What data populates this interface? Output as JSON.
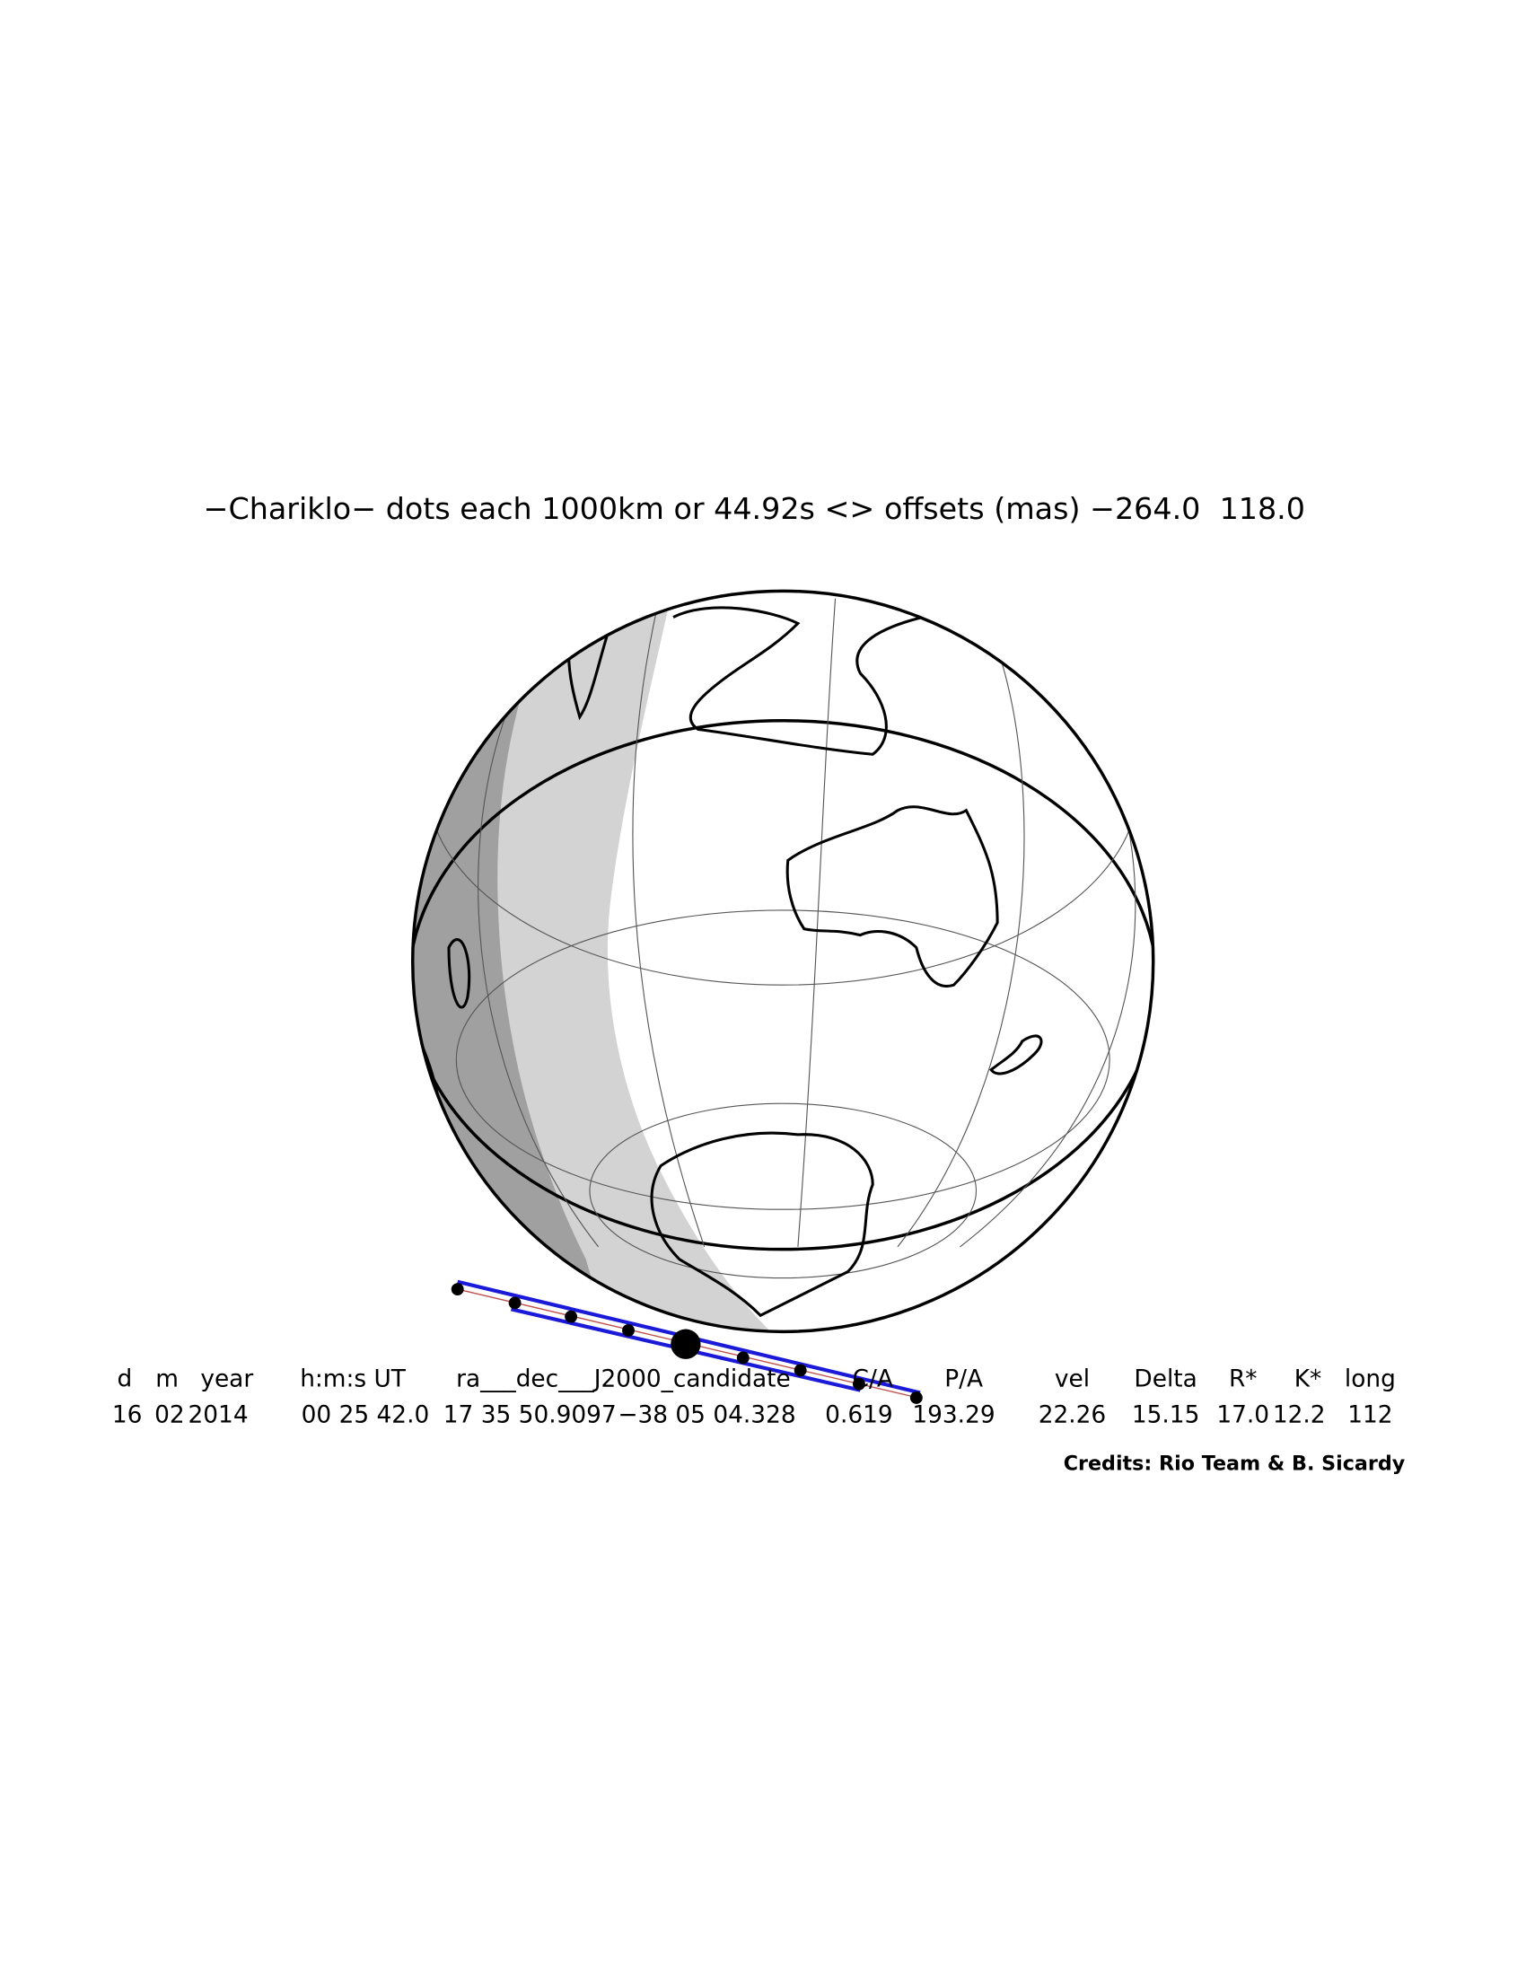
{
  "title": "−Chariklo− dots each 1000km or 44.92s <> offsets (mas) −264.0  118.0",
  "table": {
    "header": [
      "d",
      "m",
      "year",
      "h:m:s UT",
      "ra___dec___J2000_candidate",
      "C/A",
      "P/A",
      "vel",
      "Delta",
      "R*",
      "K*",
      "long"
    ],
    "values": [
      "16",
      "02",
      "2014",
      "00 25 42.0",
      "17 35 50.9097",
      "−38 05 04.328",
      "0.619",
      "193.29",
      "22.26",
      "15.15",
      "17.0",
      "12.2",
      "112"
    ]
  },
  "credits": "Credits: Rio Team & B. Sicardy"
}
